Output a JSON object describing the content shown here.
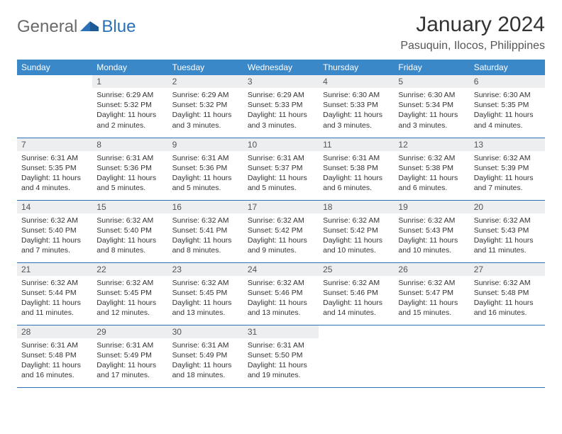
{
  "brand": {
    "part1": "General",
    "part2": "Blue",
    "accent": "#2a71b8",
    "text_gray": "#6a6a6a"
  },
  "title": "January 2024",
  "location": "Pasuquin, Ilocos, Philippines",
  "colors": {
    "header_bg": "#3b88c9",
    "header_fg": "#ffffff",
    "daynum_bg": "#eceeef",
    "row_border": "#2a71b8",
    "body_text": "#333333"
  },
  "dayNames": [
    "Sunday",
    "Monday",
    "Tuesday",
    "Wednesday",
    "Thursday",
    "Friday",
    "Saturday"
  ],
  "weeks": [
    [
      null,
      {
        "n": "1",
        "sr": "6:29 AM",
        "ss": "5:32 PM",
        "dl": "11 hours and 2 minutes."
      },
      {
        "n": "2",
        "sr": "6:29 AM",
        "ss": "5:32 PM",
        "dl": "11 hours and 3 minutes."
      },
      {
        "n": "3",
        "sr": "6:29 AM",
        "ss": "5:33 PM",
        "dl": "11 hours and 3 minutes."
      },
      {
        "n": "4",
        "sr": "6:30 AM",
        "ss": "5:33 PM",
        "dl": "11 hours and 3 minutes."
      },
      {
        "n": "5",
        "sr": "6:30 AM",
        "ss": "5:34 PM",
        "dl": "11 hours and 3 minutes."
      },
      {
        "n": "6",
        "sr": "6:30 AM",
        "ss": "5:35 PM",
        "dl": "11 hours and 4 minutes."
      }
    ],
    [
      {
        "n": "7",
        "sr": "6:31 AM",
        "ss": "5:35 PM",
        "dl": "11 hours and 4 minutes."
      },
      {
        "n": "8",
        "sr": "6:31 AM",
        "ss": "5:36 PM",
        "dl": "11 hours and 5 minutes."
      },
      {
        "n": "9",
        "sr": "6:31 AM",
        "ss": "5:36 PM",
        "dl": "11 hours and 5 minutes."
      },
      {
        "n": "10",
        "sr": "6:31 AM",
        "ss": "5:37 PM",
        "dl": "11 hours and 5 minutes."
      },
      {
        "n": "11",
        "sr": "6:31 AM",
        "ss": "5:38 PM",
        "dl": "11 hours and 6 minutes."
      },
      {
        "n": "12",
        "sr": "6:32 AM",
        "ss": "5:38 PM",
        "dl": "11 hours and 6 minutes."
      },
      {
        "n": "13",
        "sr": "6:32 AM",
        "ss": "5:39 PM",
        "dl": "11 hours and 7 minutes."
      }
    ],
    [
      {
        "n": "14",
        "sr": "6:32 AM",
        "ss": "5:40 PM",
        "dl": "11 hours and 7 minutes."
      },
      {
        "n": "15",
        "sr": "6:32 AM",
        "ss": "5:40 PM",
        "dl": "11 hours and 8 minutes."
      },
      {
        "n": "16",
        "sr": "6:32 AM",
        "ss": "5:41 PM",
        "dl": "11 hours and 8 minutes."
      },
      {
        "n": "17",
        "sr": "6:32 AM",
        "ss": "5:42 PM",
        "dl": "11 hours and 9 minutes."
      },
      {
        "n": "18",
        "sr": "6:32 AM",
        "ss": "5:42 PM",
        "dl": "11 hours and 10 minutes."
      },
      {
        "n": "19",
        "sr": "6:32 AM",
        "ss": "5:43 PM",
        "dl": "11 hours and 10 minutes."
      },
      {
        "n": "20",
        "sr": "6:32 AM",
        "ss": "5:43 PM",
        "dl": "11 hours and 11 minutes."
      }
    ],
    [
      {
        "n": "21",
        "sr": "6:32 AM",
        "ss": "5:44 PM",
        "dl": "11 hours and 11 minutes."
      },
      {
        "n": "22",
        "sr": "6:32 AM",
        "ss": "5:45 PM",
        "dl": "11 hours and 12 minutes."
      },
      {
        "n": "23",
        "sr": "6:32 AM",
        "ss": "5:45 PM",
        "dl": "11 hours and 13 minutes."
      },
      {
        "n": "24",
        "sr": "6:32 AM",
        "ss": "5:46 PM",
        "dl": "11 hours and 13 minutes."
      },
      {
        "n": "25",
        "sr": "6:32 AM",
        "ss": "5:46 PM",
        "dl": "11 hours and 14 minutes."
      },
      {
        "n": "26",
        "sr": "6:32 AM",
        "ss": "5:47 PM",
        "dl": "11 hours and 15 minutes."
      },
      {
        "n": "27",
        "sr": "6:32 AM",
        "ss": "5:48 PM",
        "dl": "11 hours and 16 minutes."
      }
    ],
    [
      {
        "n": "28",
        "sr": "6:31 AM",
        "ss": "5:48 PM",
        "dl": "11 hours and 16 minutes."
      },
      {
        "n": "29",
        "sr": "6:31 AM",
        "ss": "5:49 PM",
        "dl": "11 hours and 17 minutes."
      },
      {
        "n": "30",
        "sr": "6:31 AM",
        "ss": "5:49 PM",
        "dl": "11 hours and 18 minutes."
      },
      {
        "n": "31",
        "sr": "6:31 AM",
        "ss": "5:50 PM",
        "dl": "11 hours and 19 minutes."
      },
      null,
      null,
      null
    ]
  ],
  "labels": {
    "sunrise": "Sunrise:",
    "sunset": "Sunset:",
    "daylight": "Daylight:"
  }
}
